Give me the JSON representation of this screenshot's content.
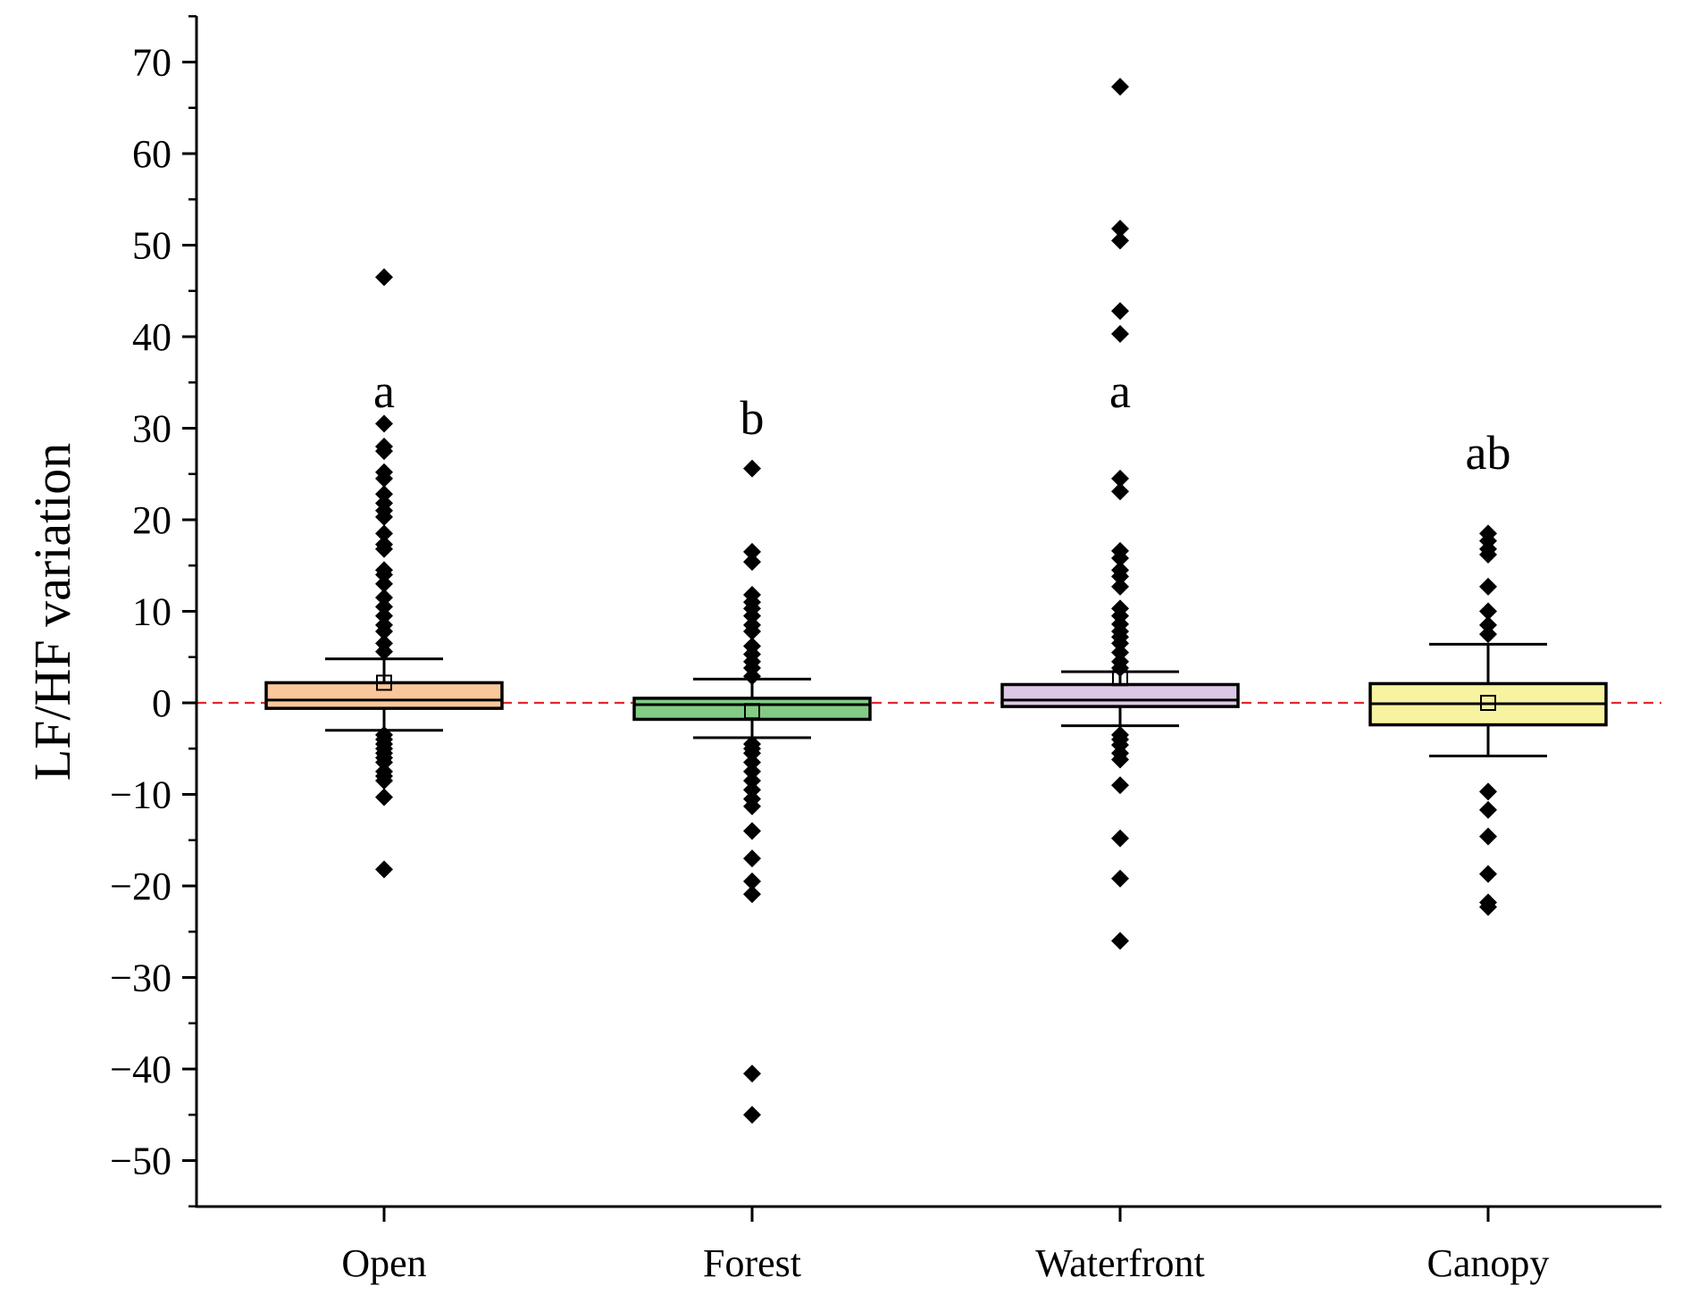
{
  "chart_data": {
    "type": "box",
    "title": "",
    "xlabel": "",
    "ylabel": "LF/HF variation",
    "ylim": [
      -55,
      75
    ],
    "yticks": [
      70,
      60,
      50,
      40,
      30,
      20,
      10,
      0,
      -10,
      -20,
      -30,
      -40,
      -50
    ],
    "ytick_labels": [
      "70",
      "60",
      "50",
      "40",
      "30",
      "20",
      "10",
      "0",
      "−10",
      "−20",
      "−30",
      "−40",
      "−50"
    ],
    "reference_line": {
      "value": 0,
      "style": "dashed",
      "color": "#e8262a"
    },
    "categories": [
      "Open",
      "Forest",
      "Waterfront",
      "Canopy"
    ],
    "groups": [
      {
        "name": "Open",
        "color": "#f9c79a",
        "significance": "a",
        "q1": -0.6,
        "median": 0.3,
        "q3": 2.2,
        "whisker_low": -3.0,
        "whisker_high": 4.8,
        "mean": 2.2,
        "outliers": [
          46.5,
          30.5,
          28.0,
          27.5,
          25.2,
          24.5,
          22.8,
          21.8,
          21.0,
          20.3,
          18.5,
          17.3,
          16.8,
          14.5,
          14.0,
          13.0,
          11.5,
          10.5,
          9.5,
          8.5,
          7.8,
          6.5,
          5.6,
          -3.5,
          -4.0,
          -4.5,
          -5.0,
          -5.5,
          -6.0,
          -6.5,
          -7.5,
          -8.0,
          -8.5,
          -10.3,
          -18.2
        ]
      },
      {
        "name": "Forest",
        "color": "#82cc85",
        "significance": "b",
        "q1": -1.8,
        "median": -0.2,
        "q3": 0.5,
        "whisker_low": -3.8,
        "whisker_high": 2.6,
        "mean": -0.9,
        "outliers": [
          25.6,
          16.5,
          15.4,
          11.8,
          11.0,
          10.3,
          9.5,
          8.5,
          7.8,
          6.2,
          5.3,
          4.5,
          3.8,
          2.9,
          -4.5,
          -5.0,
          -5.5,
          -6.5,
          -7.5,
          -8.5,
          -9.5,
          -10.5,
          -11.3,
          -14.0,
          -17.0,
          -19.5,
          -20.9,
          -40.5,
          -45.0
        ]
      },
      {
        "name": "Waterfront",
        "color": "#dcc8e6",
        "significance": "a",
        "q1": -0.4,
        "median": 0.3,
        "q3": 2.0,
        "whisker_low": -2.5,
        "whisker_high": 3.4,
        "mean": 2.7,
        "outliers": [
          67.3,
          51.8,
          50.5,
          42.8,
          40.3,
          24.5,
          23.1,
          16.6,
          15.8,
          14.5,
          13.8,
          12.7,
          10.3,
          9.5,
          8.6,
          7.8,
          7.2,
          6.5,
          5.5,
          4.5,
          3.8,
          -3.5,
          -4.0,
          -4.6,
          -5.5,
          -6.2,
          -9.0,
          -14.8,
          -19.2,
          -26.0
        ]
      },
      {
        "name": "Canopy",
        "color": "#f8f3a0",
        "significance": "ab",
        "q1": -2.4,
        "median": -0.1,
        "q3": 2.1,
        "whisker_low": -5.8,
        "whisker_high": 6.4,
        "mean": 0.0,
        "outliers": [
          18.5,
          17.7,
          16.8,
          16.2,
          12.7,
          10.0,
          8.5,
          7.5,
          -9.7,
          -11.7,
          -14.6,
          -18.7,
          -21.8,
          -22.3
        ]
      }
    ]
  }
}
